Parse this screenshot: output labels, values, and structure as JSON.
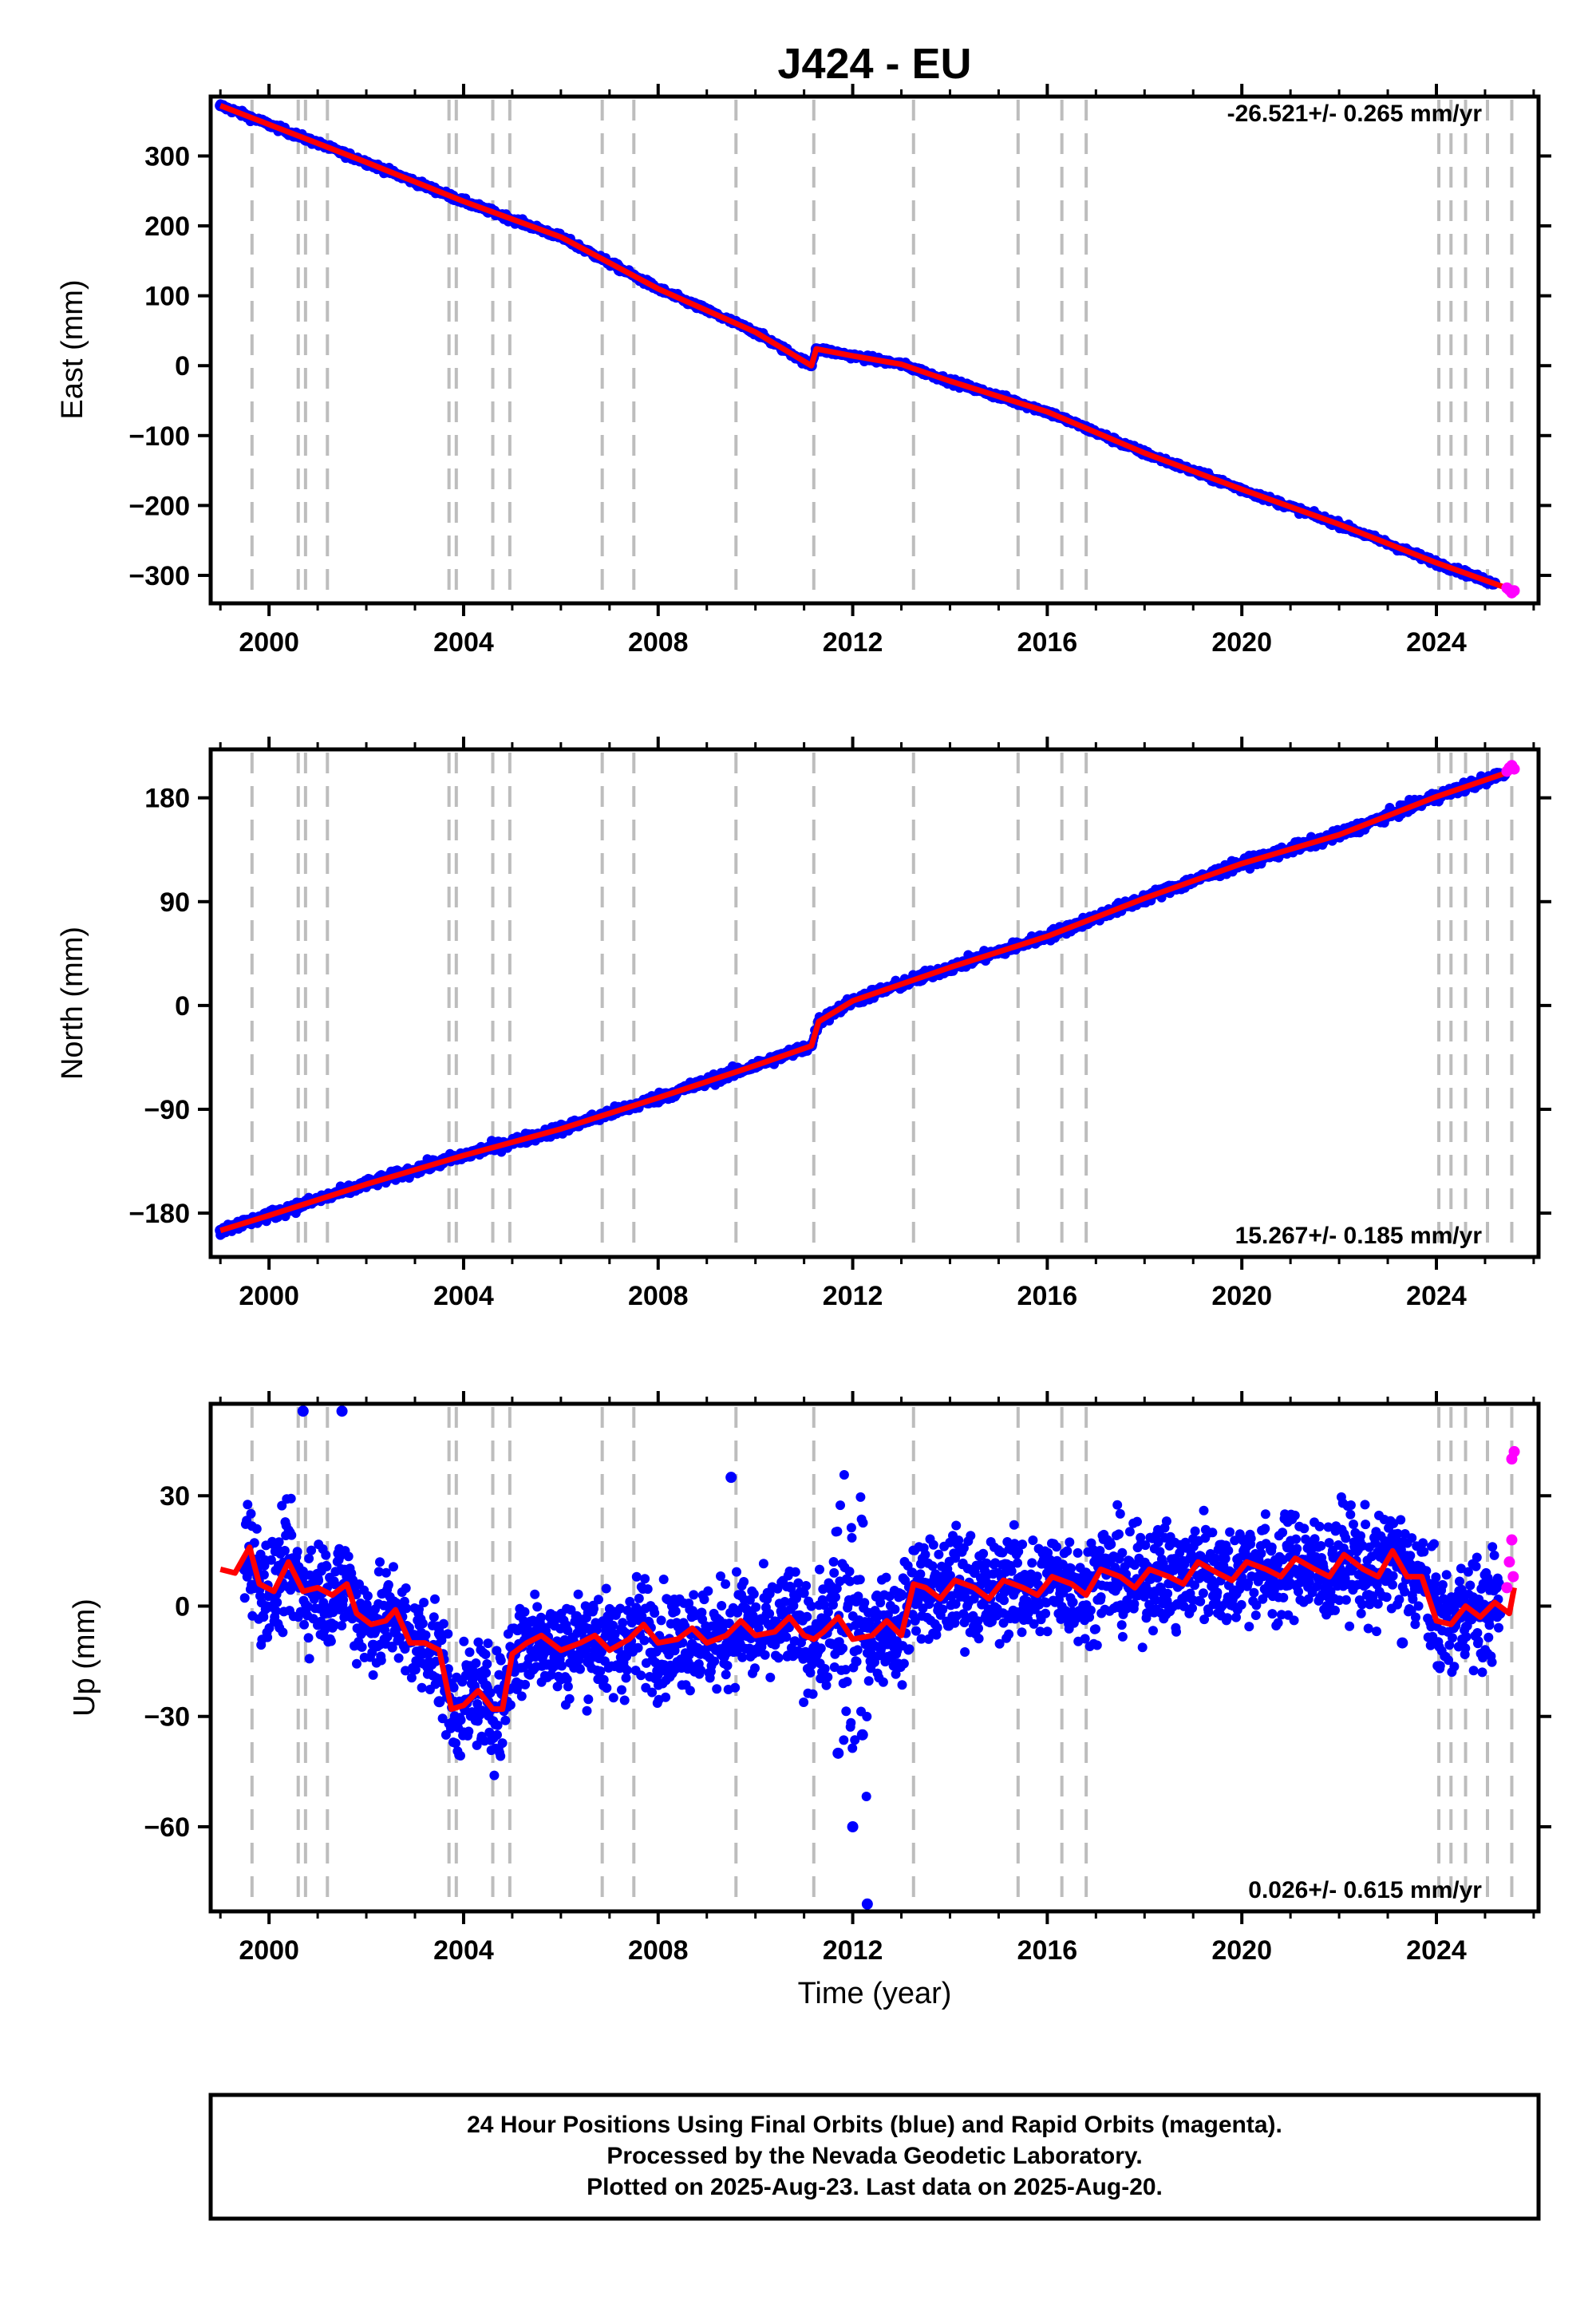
{
  "title": "J424 - EU",
  "xlabel": "Time (year)",
  "footer": {
    "line1": "24 Hour Positions Using Final Orbits (blue) and Rapid Orbits (magenta).",
    "line2": "Processed by the Nevada Geodetic Laboratory.",
    "line3": "Plotted on 2025-Aug-23. Last data on 2025-Aug-20."
  },
  "colors": {
    "final": "#0000ff",
    "rapid": "#ff00ff",
    "model": "#ff0000",
    "event_lines": "#bdbdbd",
    "frame": "#000000"
  },
  "chart_data": [
    {
      "type": "scatter",
      "component": "East",
      "ylabel": "East (mm)",
      "rate": "-26.521+/- 0.265 mm/yr",
      "rate_position": "top-right",
      "xlim": [
        1998.8,
        2026.1
      ],
      "ylim": [
        -340,
        385
      ],
      "x_ticks": [
        2000,
        2004,
        2008,
        2012,
        2016,
        2020,
        2024
      ],
      "y_ticks": [
        300,
        200,
        100,
        0,
        -100,
        -200,
        -300
      ],
      "y_tick_labels": [
        "300",
        "200",
        "100",
        "0",
        "−100",
        "−200",
        "−300"
      ],
      "event_lines_x": [
        1999.65,
        2000.6,
        2000.75,
        2001.2,
        2003.7,
        2003.85,
        2004.6,
        2004.95,
        2006.85,
        2007.5,
        2009.6,
        2011.2,
        2013.25,
        2015.4,
        2016.3,
        2016.8,
        2024.05,
        2024.3,
        2024.6,
        2025.05,
        2025.55
      ],
      "series": [
        {
          "name": "Final Orbits (blue)",
          "x": [
            1999.0,
            2000.0,
            2002.0,
            2004.0,
            2006.0,
            2008.0,
            2010.0,
            2011.15,
            2011.25,
            2012.0,
            2013.0,
            2014.0,
            2016.0,
            2018.0,
            2020.0,
            2022.0,
            2024.0,
            2025.2
          ],
          "y": [
            372,
            345,
            291,
            235,
            184,
            110,
            48,
            0,
            24,
            14,
            2,
            -22,
            -66,
            -125,
            -177,
            -227,
            -282,
            -311
          ]
        },
        {
          "name": "Rapid Orbits (magenta)",
          "x": [
            2025.45,
            2025.5,
            2025.55,
            2025.6
          ],
          "y": [
            -318,
            -321,
            -325,
            -322
          ]
        },
        {
          "name": "Model",
          "x": [
            1999.0,
            2000.0,
            2002.0,
            2004.0,
            2006.0,
            2008.0,
            2010.0,
            2011.15,
            2011.25,
            2012.0,
            2013.0,
            2014.0,
            2016.0,
            2018.0,
            2020.0,
            2022.0,
            2024.0,
            2025.6
          ],
          "y": [
            372,
            345,
            291,
            235,
            184,
            110,
            48,
            0,
            24,
            14,
            2,
            -22,
            -66,
            -125,
            -177,
            -227,
            -282,
            -322
          ]
        }
      ]
    },
    {
      "type": "scatter",
      "component": "North",
      "ylabel": "North (mm)",
      "rate": "15.267+/- 0.185 mm/yr",
      "rate_position": "bottom-right",
      "xlim": [
        1998.8,
        2026.1
      ],
      "ylim": [
        -218,
        222
      ],
      "x_ticks": [
        2000,
        2004,
        2008,
        2012,
        2016,
        2020,
        2024
      ],
      "y_ticks": [
        180,
        90,
        0,
        -90,
        -180
      ],
      "y_tick_labels": [
        "180",
        "90",
        "0",
        "−90",
        "−180"
      ],
      "event_lines_x": [
        1999.65,
        2000.6,
        2000.75,
        2001.2,
        2003.7,
        2003.85,
        2004.6,
        2004.95,
        2006.85,
        2007.5,
        2009.6,
        2011.2,
        2013.25,
        2015.4,
        2016.3,
        2016.8,
        2024.05,
        2024.3,
        2024.6,
        2025.05,
        2025.55
      ],
      "series": [
        {
          "name": "Final Orbits (blue)",
          "x": [
            1999.0,
            2000.0,
            2002.0,
            2004.0,
            2006.0,
            2008.0,
            2010.0,
            2011.15,
            2011.3,
            2012.0,
            2014.0,
            2016.0,
            2018.0,
            2020.0,
            2022.0,
            2024.0,
            2025.4
          ],
          "y": [
            -195,
            -182,
            -155,
            -130,
            -107,
            -80,
            -52,
            -35,
            -14,
            4,
            33,
            60,
            93,
            123,
            148,
            181,
            200
          ]
        },
        {
          "name": "Rapid Orbits (magenta)",
          "x": [
            2025.45,
            2025.5,
            2025.55,
            2025.6
          ],
          "y": [
            203,
            206,
            208,
            205
          ]
        },
        {
          "name": "Model",
          "x": [
            1999.0,
            2000.0,
            2002.0,
            2004.0,
            2006.0,
            2008.0,
            2010.0,
            2011.15,
            2011.3,
            2012.0,
            2014.0,
            2016.0,
            2018.0,
            2020.0,
            2022.0,
            2024.0,
            2025.6
          ],
          "y": [
            -195,
            -182,
            -155,
            -130,
            -107,
            -80,
            -52,
            -35,
            -14,
            4,
            33,
            60,
            93,
            123,
            148,
            181,
            204
          ]
        }
      ]
    },
    {
      "type": "scatter",
      "component": "Up",
      "ylabel": "Up (mm)",
      "rate": "0.026+/- 0.615 mm/yr",
      "rate_position": "bottom-right",
      "xlim": [
        1998.8,
        2026.1
      ],
      "ylim": [
        -83,
        55
      ],
      "x_ticks": [
        2000,
        2004,
        2008,
        2012,
        2016,
        2020,
        2024
      ],
      "y_ticks": [
        30,
        0,
        -30,
        -60
      ],
      "y_tick_labels": [
        "30",
        "0",
        "−30",
        "−60"
      ],
      "event_lines_x": [
        1999.65,
        2000.6,
        2000.75,
        2001.2,
        2003.7,
        2003.85,
        2004.6,
        2004.95,
        2006.85,
        2007.5,
        2009.6,
        2011.2,
        2013.25,
        2015.4,
        2016.3,
        2016.8,
        2024.05,
        2024.3,
        2024.6,
        2025.05,
        2025.55
      ],
      "series": [
        {
          "name": "Final Orbits (blue)",
          "x": [
            1999.5,
            2000.5,
            2001.0,
            2001.5,
            2002.5,
            2003.5,
            2004.0,
            2004.5,
            2005.5,
            2007.0,
            2009.0,
            2011.0,
            2011.7,
            2012.0,
            2012.2,
            2013.0,
            2014.5,
            2016.5,
            2018.5,
            2020.5,
            2022.5,
            2023.3,
            2024.5,
            2025.3,
            2000.7,
            2001.5,
            2009.5,
            2012.3
          ],
          "y": [
            10,
            6,
            7,
            4,
            -1,
            -26,
            -27,
            -26,
            -7,
            -8,
            -8,
            -8,
            -40,
            -60,
            -35,
            3,
            5,
            8,
            9,
            11,
            10,
            -10,
            -3,
            -2,
            53,
            53,
            35,
            -81
          ]
        },
        {
          "name": "Rapid Orbits (magenta)",
          "x": [
            2025.45,
            2025.5,
            2025.55,
            2025.58,
            2025.6,
            2025.55
          ],
          "y": [
            5,
            12,
            18,
            8,
            42,
            40
          ]
        },
        {
          "name": "Model",
          "x": [
            1999.0,
            1999.3,
            1999.6,
            1999.8,
            2000.1,
            2000.4,
            2000.7,
            2001.0,
            2001.3,
            2001.6,
            2001.8,
            2002.1,
            2002.4,
            2002.6,
            2002.9,
            2003.2,
            2003.5,
            2003.75,
            2004.0,
            2004.3,
            2004.6,
            2004.8,
            2005.0,
            2005.3,
            2005.6,
            2006.0,
            2006.4,
            2006.7,
            2007.0,
            2007.4,
            2007.7,
            2008.0,
            2008.4,
            2008.7,
            2009.0,
            2009.4,
            2009.7,
            2010.0,
            2010.4,
            2010.7,
            2011.0,
            2011.2,
            2011.4,
            2011.7,
            2012.0,
            2012.4,
            2012.7,
            2013.0,
            2013.25,
            2013.5,
            2013.8,
            2014.1,
            2014.5,
            2014.8,
            2015.1,
            2015.5,
            2015.8,
            2016.1,
            2016.5,
            2016.8,
            2017.1,
            2017.5,
            2017.8,
            2018.1,
            2018.5,
            2018.8,
            2019.1,
            2019.5,
            2019.8,
            2020.1,
            2020.5,
            2020.8,
            2021.1,
            2021.5,
            2021.8,
            2022.1,
            2022.5,
            2022.8,
            2023.1,
            2023.4,
            2023.7,
            2024.0,
            2024.3,
            2024.6,
            2024.9,
            2025.2,
            2025.5,
            2025.6
          ],
          "y": [
            10,
            9,
            16,
            6,
            4,
            12,
            4,
            5,
            3,
            6,
            -2,
            -5,
            -4,
            -1,
            -10,
            -10,
            -12,
            -28,
            -27,
            -23,
            -28,
            -28,
            -13,
            -10,
            -8,
            -12,
            -10,
            -8,
            -12,
            -9,
            -5,
            -10,
            -9,
            -6,
            -10,
            -8,
            -4,
            -8,
            -7,
            -3,
            -8,
            -9,
            -7,
            -3,
            -9,
            -8,
            -4,
            -8,
            6,
            5,
            2,
            7,
            5,
            2,
            7,
            5,
            3,
            8,
            6,
            3,
            10,
            8,
            5,
            10,
            8,
            6,
            12,
            9,
            7,
            12,
            10,
            8,
            13,
            10,
            8,
            14,
            10,
            8,
            15,
            8,
            8,
            -4,
            -5,
            0,
            -3,
            1,
            -2,
            5
          ]
        }
      ]
    }
  ]
}
